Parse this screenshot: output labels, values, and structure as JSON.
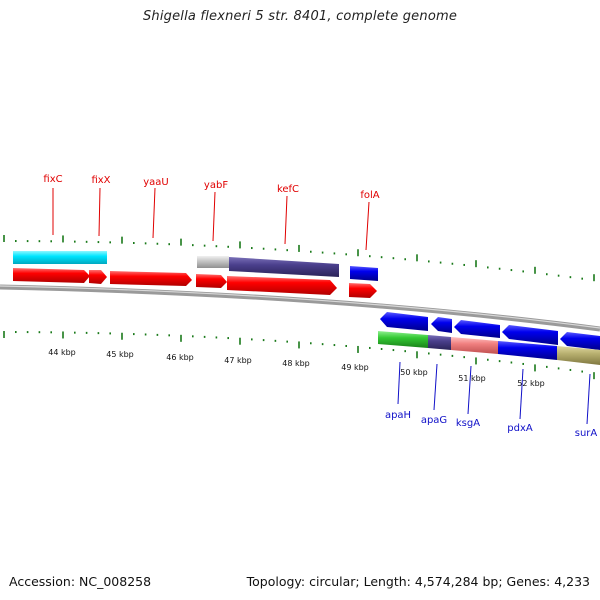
{
  "header": {
    "title": "Shigella flexneri 5 str. 8401, complete genome"
  },
  "footer": {
    "accession": "Accession: NC_008258",
    "topology": "Topology: circular; Length: 4,574,284 bp; Genes: 4,233"
  },
  "colors": {
    "forward_gene": "#ff0000",
    "reverse_gene": "#0000dd",
    "top_label": "#e00000",
    "bottom_label": "#1010c8",
    "tick": "#1a7a1a",
    "cyan": "#00e5ff",
    "grey": "#c8c8c8",
    "purple": "#4a3f8c",
    "green": "#33c833",
    "salmon": "#f08080",
    "khaki": "#b8b070",
    "backbone": "#888888"
  },
  "gene_labels_top": [
    "fixC",
    "fixX",
    "yaaU",
    "yabF",
    "kefC",
    "folA"
  ],
  "gene_labels_bottom": [
    "apaH",
    "apaG",
    "ksgA",
    "pdxA",
    "surA"
  ],
  "kbp_labels": [
    "44 kbp",
    "45 kbp",
    "46 kbp",
    "47 kbp",
    "48 kbp",
    "49 kbp",
    "50 kbp",
    "51 kbp",
    "52 kbp"
  ]
}
